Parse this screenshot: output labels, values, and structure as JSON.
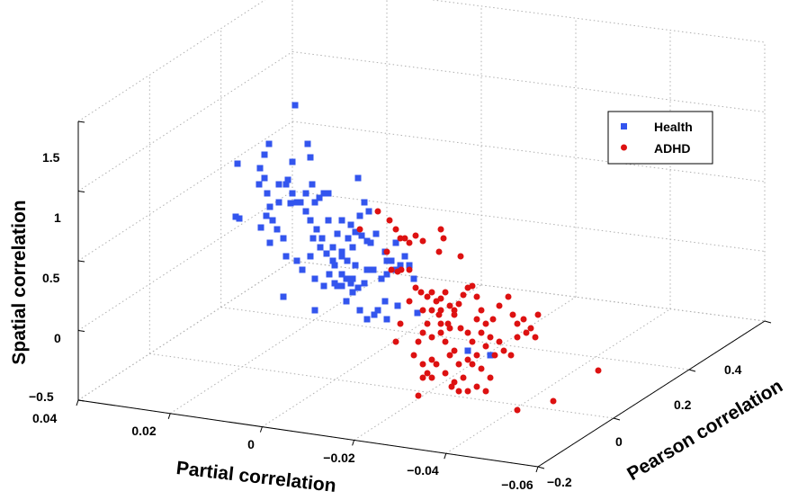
{
  "chart_data": {
    "type": "scatter",
    "title": "",
    "xlabel": "Partial correlation",
    "ylabel": "Pearson correlation",
    "zlabel": "Spatial correlation",
    "x_ticks": [
      "0.04",
      "0.02",
      "0",
      "−0.02",
      "−0.04",
      "−0.06"
    ],
    "y_ticks": [
      "−0.2",
      "0",
      "0.2",
      "0.4"
    ],
    "z_ticks": [
      "−0.5",
      "0",
      "0.5",
      "1",
      "1.5"
    ],
    "grid": true,
    "legend_position": "top-right",
    "series": [
      {
        "name": "Health",
        "marker": "square",
        "color": "#3355ee",
        "points": [
          [
            264,
            182
          ],
          [
            262,
            241
          ],
          [
            266,
            243
          ],
          [
            299,
            160
          ],
          [
            294,
            172
          ],
          [
            289,
            187
          ],
          [
            294,
            198
          ],
          [
            288,
            205
          ],
          [
            297,
            215
          ],
          [
            300,
            230
          ],
          [
            303,
            245
          ],
          [
            290,
            253
          ],
          [
            310,
            205
          ],
          [
            318,
            205
          ],
          [
            325,
            180
          ],
          [
            325,
            215
          ],
          [
            342,
            160
          ],
          [
            345,
            175
          ],
          [
            328,
            117
          ],
          [
            320,
            200
          ],
          [
            330,
            225
          ],
          [
            340,
            215
          ],
          [
            350,
            225
          ],
          [
            355,
            220
          ],
          [
            360,
            215
          ],
          [
            347,
            205
          ],
          [
            365,
            215
          ],
          [
            340,
            235
          ],
          [
            345,
            245
          ],
          [
            352,
            255
          ],
          [
            358,
            265
          ],
          [
            348,
            265
          ],
          [
            356,
            275
          ],
          [
            363,
            282
          ],
          [
            370,
            275
          ],
          [
            375,
            260
          ],
          [
            365,
            245
          ],
          [
            380,
            245
          ],
          [
            390,
            250
          ],
          [
            392,
            275
          ],
          [
            395,
            258
          ],
          [
            402,
            262
          ],
          [
            408,
            268
          ],
          [
            412,
            270
          ],
          [
            418,
            260
          ],
          [
            398,
            198
          ],
          [
            405,
            225
          ],
          [
            410,
            235
          ],
          [
            400,
            240
          ],
          [
            387,
            265
          ],
          [
            380,
            280
          ],
          [
            372,
            295
          ],
          [
            380,
            305
          ],
          [
            385,
            310
          ],
          [
            390,
            315
          ],
          [
            398,
            320
          ],
          [
            405,
            315
          ],
          [
            408,
            300
          ],
          [
            415,
            300
          ],
          [
            395,
            295
          ],
          [
            392,
            310
          ],
          [
            380,
            318
          ],
          [
            372,
            315
          ],
          [
            360,
            318
          ],
          [
            350,
            310
          ],
          [
            366,
            305
          ],
          [
            375,
            318
          ],
          [
            385,
            335
          ],
          [
            392,
            325
          ],
          [
            400,
            345
          ],
          [
            408,
            355
          ],
          [
            416,
            350
          ],
          [
            420,
            345
          ],
          [
            428,
            335
          ],
          [
            424,
            310
          ],
          [
            430,
            305
          ],
          [
            440,
            300
          ],
          [
            445,
            295
          ],
          [
            435,
            290
          ],
          [
            428,
            280
          ],
          [
            440,
            270
          ],
          [
            450,
            285
          ],
          [
            455,
            295
          ],
          [
            460,
            310
          ],
          [
            442,
            340
          ],
          [
            430,
            355
          ],
          [
            315,
            330
          ],
          [
            350,
            345
          ],
          [
            318,
            285
          ],
          [
            330,
            290
          ],
          [
            345,
            285
          ],
          [
            336,
            300
          ],
          [
            308,
            255
          ],
          [
            315,
            265
          ],
          [
            300,
            270
          ],
          [
            296,
            240
          ],
          [
            310,
            225
          ],
          [
            323,
            226
          ],
          [
            334,
            225
          ],
          [
            370,
            290
          ],
          [
            380,
            285
          ],
          [
            386,
            290
          ],
          [
            430,
            290
          ],
          [
            464,
            348
          ],
          [
            520,
            390
          ],
          [
            545,
            395
          ]
        ]
      },
      {
        "name": "ADHD",
        "marker": "circle",
        "color": "#dd1111",
        "points": [
          [
            400,
            255
          ],
          [
            420,
            235
          ],
          [
            433,
            245
          ],
          [
            440,
            255
          ],
          [
            445,
            265
          ],
          [
            450,
            265
          ],
          [
            455,
            270
          ],
          [
            462,
            262
          ],
          [
            470,
            268
          ],
          [
            490,
            255
          ],
          [
            493,
            265
          ],
          [
            488,
            280
          ],
          [
            512,
            285
          ],
          [
            430,
            280
          ],
          [
            435,
            300
          ],
          [
            442,
            302
          ],
          [
            446,
            300
          ],
          [
            455,
            300
          ],
          [
            462,
            320
          ],
          [
            468,
            325
          ],
          [
            475,
            330
          ],
          [
            480,
            325
          ],
          [
            485,
            335
          ],
          [
            490,
            332
          ],
          [
            495,
            325
          ],
          [
            500,
            340
          ],
          [
            505,
            345
          ],
          [
            510,
            338
          ],
          [
            515,
            328
          ],
          [
            520,
            320
          ],
          [
            525,
            318
          ],
          [
            530,
            330
          ],
          [
            535,
            345
          ],
          [
            530,
            355
          ],
          [
            540,
            360
          ],
          [
            548,
            355
          ],
          [
            555,
            340
          ],
          [
            565,
            330
          ],
          [
            570,
            350
          ],
          [
            575,
            360
          ],
          [
            582,
            355
          ],
          [
            590,
            365
          ],
          [
            595,
            375
          ],
          [
            598,
            350
          ],
          [
            575,
            375
          ],
          [
            568,
            395
          ],
          [
            560,
            390
          ],
          [
            555,
            380
          ],
          [
            545,
            375
          ],
          [
            540,
            385
          ],
          [
            530,
            395
          ],
          [
            525,
            405
          ],
          [
            520,
            400
          ],
          [
            510,
            405
          ],
          [
            500,
            395
          ],
          [
            495,
            380
          ],
          [
            490,
            370
          ],
          [
            480,
            375
          ],
          [
            470,
            370
          ],
          [
            465,
            380
          ],
          [
            460,
            395
          ],
          [
            470,
            405
          ],
          [
            475,
            415
          ],
          [
            480,
            400
          ],
          [
            485,
            405
          ],
          [
            495,
            415
          ],
          [
            505,
            425
          ],
          [
            510,
            435
          ],
          [
            520,
            435
          ],
          [
            530,
            430
          ],
          [
            540,
            435
          ],
          [
            545,
            420
          ],
          [
            535,
            410
          ],
          [
            515,
            420
          ],
          [
            502,
            430
          ],
          [
            480,
            420
          ],
          [
            470,
            420
          ],
          [
            465,
            440
          ],
          [
            490,
            360
          ],
          [
            498,
            360
          ],
          [
            505,
            350
          ],
          [
            512,
            365
          ],
          [
            520,
            370
          ],
          [
            525,
            380
          ],
          [
            535,
            370
          ],
          [
            480,
            345
          ],
          [
            470,
            345
          ],
          [
            488,
            350
          ],
          [
            455,
            335
          ],
          [
            445,
            360
          ],
          [
            440,
            380
          ],
          [
            475,
            360
          ],
          [
            500,
            365
          ],
          [
            490,
            345
          ],
          [
            505,
            390
          ],
          [
            550,
            395
          ],
          [
            585,
            370
          ],
          [
            665,
            412
          ],
          [
            615,
            446
          ],
          [
            575,
            456
          ]
        ]
      }
    ]
  }
}
